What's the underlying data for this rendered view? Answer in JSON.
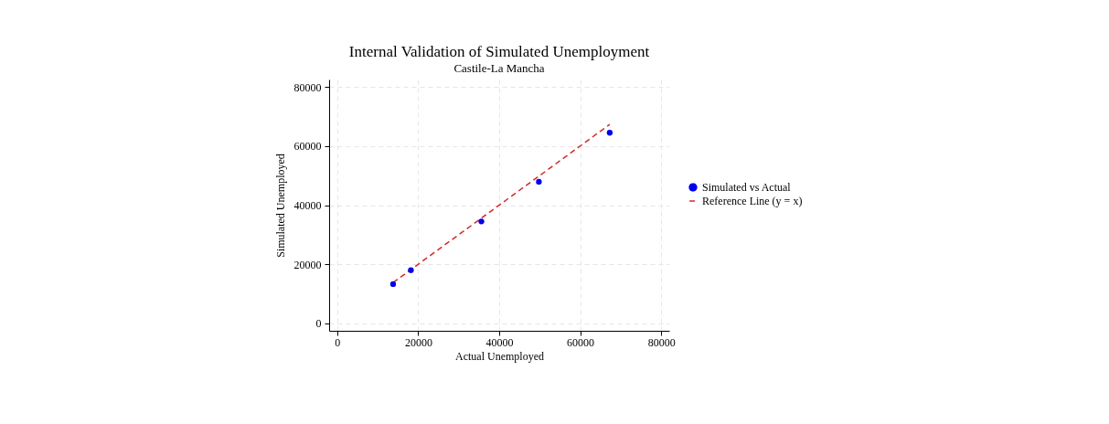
{
  "chart_data": {
    "type": "scatter",
    "title": "Internal Validation of Simulated Unemployment",
    "subtitle": "Castile-La Mancha",
    "xlabel": "Actual Unemployed",
    "ylabel": "Simulated Unemployed",
    "xlim": [
      -2000,
      82000
    ],
    "ylim": [
      -2500,
      82500
    ],
    "xticks": [
      0,
      20000,
      40000,
      60000,
      80000
    ],
    "yticks": [
      0,
      20000,
      40000,
      60000,
      80000
    ],
    "grid": true,
    "legend": "right",
    "series": [
      {
        "name": "Simulated vs Actual",
        "marker": "circle",
        "color": "#0000ee",
        "x": [
          13800,
          18200,
          35600,
          49800,
          67300
        ],
        "values": [
          13300,
          18000,
          34500,
          47900,
          64500
        ]
      },
      {
        "name": "Reference Line (y = x)",
        "type": "line",
        "line_style": "dashed",
        "color": "#d62728",
        "x": [
          13800,
          67300
        ],
        "values": [
          13800,
          67300
        ]
      }
    ]
  }
}
